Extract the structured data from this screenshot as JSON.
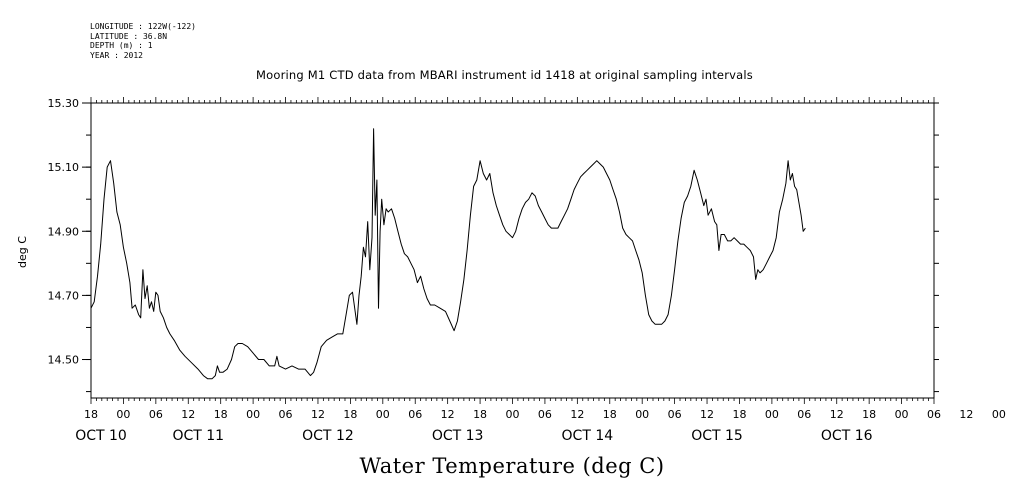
{
  "header": {
    "meta_lines": [
      "LONGITUDE : 122W(-122)",
      "LATITUDE : 36.8N",
      "DEPTH (m) : 1",
      "YEAR : 2012"
    ]
  },
  "chart_data": {
    "type": "line",
    "title": "Mooring M1 CTD data from MBARI instrument id 1418 at original sampling intervals",
    "xlabel": "Water Temperature (deg C)",
    "ylabel": "deg C",
    "ylim": [
      14.38,
      15.3
    ],
    "y_ticks": [
      "14.50",
      "14.70",
      "14.90",
      "15.10",
      "15.30"
    ],
    "x_range_hours": [
      0,
      156
    ],
    "x_start": "2012-10-10T18:00",
    "x_tick_labels": [
      "18",
      "00",
      "06",
      "12",
      "18",
      "00",
      "06",
      "12",
      "18",
      "00",
      "06",
      "12",
      "18",
      "00",
      "06",
      "12",
      "18",
      "00",
      "06",
      "12",
      "18",
      "00",
      "06",
      "12",
      "18",
      "00",
      "06",
      "12",
      "00"
    ],
    "x_day_labels": [
      {
        "label": "OCT 10",
        "hour": 0
      },
      {
        "label": "OCT 11",
        "hour": 18
      },
      {
        "label": "OCT 12",
        "hour": 42
      },
      {
        "label": "OCT 13",
        "hour": 66
      },
      {
        "label": "OCT 14",
        "hour": 90
      },
      {
        "label": "OCT 15",
        "hour": 114
      },
      {
        "label": "OCT 16",
        "hour": 138
      }
    ],
    "series": [
      {
        "color": "#000000",
        "points": [
          [
            0,
            14.66
          ],
          [
            0.6,
            14.68
          ],
          [
            1.2,
            14.76
          ],
          [
            1.8,
            14.86
          ],
          [
            2.4,
            15.0
          ],
          [
            3,
            15.1
          ],
          [
            3.6,
            15.12
          ],
          [
            4.2,
            15.05
          ],
          [
            4.8,
            14.96
          ],
          [
            5.4,
            14.92
          ],
          [
            6,
            14.85
          ],
          [
            6.6,
            14.8
          ],
          [
            7.2,
            14.74
          ],
          [
            7.6,
            14.66
          ],
          [
            8.2,
            14.67
          ],
          [
            8.8,
            14.64
          ],
          [
            9.2,
            14.63
          ],
          [
            9.6,
            14.78
          ],
          [
            10,
            14.69
          ],
          [
            10.4,
            14.73
          ],
          [
            10.8,
            14.66
          ],
          [
            11.2,
            14.68
          ],
          [
            11.6,
            14.65
          ],
          [
            12,
            14.71
          ],
          [
            12.4,
            14.7
          ],
          [
            12.8,
            14.65
          ],
          [
            13.4,
            14.63
          ],
          [
            14,
            14.6
          ],
          [
            14.6,
            14.58
          ],
          [
            15.4,
            14.56
          ],
          [
            16.4,
            14.53
          ],
          [
            17.4,
            14.51
          ],
          [
            18.6,
            14.49
          ],
          [
            19.8,
            14.47
          ],
          [
            20.8,
            14.45
          ],
          [
            21.6,
            14.44
          ],
          [
            22.4,
            14.44
          ],
          [
            23,
            14.45
          ],
          [
            23.4,
            14.48
          ],
          [
            23.8,
            14.46
          ],
          [
            24.4,
            14.46
          ],
          [
            25.2,
            14.47
          ],
          [
            26,
            14.5
          ],
          [
            26.6,
            14.54
          ],
          [
            27.2,
            14.55
          ],
          [
            28,
            14.55
          ],
          [
            29,
            14.54
          ],
          [
            30,
            14.52
          ],
          [
            31,
            14.5
          ],
          [
            32,
            14.5
          ],
          [
            33,
            14.48
          ],
          [
            34,
            14.48
          ],
          [
            34.4,
            14.51
          ],
          [
            34.8,
            14.48
          ],
          [
            36,
            14.47
          ],
          [
            37.2,
            14.48
          ],
          [
            38.4,
            14.47
          ],
          [
            39.6,
            14.47
          ],
          [
            40.6,
            14.45
          ],
          [
            41.2,
            14.46
          ],
          [
            41.8,
            14.49
          ],
          [
            42.6,
            14.54
          ],
          [
            43.6,
            14.56
          ],
          [
            44.6,
            14.57
          ],
          [
            45.6,
            14.58
          ],
          [
            46.6,
            14.58
          ],
          [
            47.2,
            14.64
          ],
          [
            47.8,
            14.7
          ],
          [
            48.4,
            14.71
          ],
          [
            48.8,
            14.66
          ],
          [
            49.2,
            14.61
          ],
          [
            49.6,
            14.7
          ],
          [
            50,
            14.76
          ],
          [
            50.4,
            14.85
          ],
          [
            50.8,
            14.82
          ],
          [
            51.2,
            14.93
          ],
          [
            51.6,
            14.78
          ],
          [
            52,
            14.88
          ],
          [
            52.3,
            15.22
          ],
          [
            52.6,
            14.95
          ],
          [
            52.9,
            15.06
          ],
          [
            53.2,
            14.66
          ],
          [
            53.5,
            14.9
          ],
          [
            53.8,
            15.0
          ],
          [
            54.2,
            14.92
          ],
          [
            54.6,
            14.97
          ],
          [
            55,
            14.96
          ],
          [
            55.6,
            14.97
          ],
          [
            56.2,
            14.94
          ],
          [
            56.8,
            14.9
          ],
          [
            57.4,
            14.86
          ],
          [
            58,
            14.83
          ],
          [
            58.6,
            14.82
          ],
          [
            59.2,
            14.8
          ],
          [
            59.8,
            14.78
          ],
          [
            60.4,
            14.74
          ],
          [
            61,
            14.76
          ],
          [
            61.6,
            14.72
          ],
          [
            62.2,
            14.69
          ],
          [
            62.8,
            14.67
          ],
          [
            63.6,
            14.67
          ],
          [
            64.6,
            14.66
          ],
          [
            65.6,
            14.65
          ],
          [
            66.4,
            14.62
          ],
          [
            67.2,
            14.59
          ],
          [
            67.8,
            14.62
          ],
          [
            68.4,
            14.68
          ],
          [
            69,
            14.75
          ],
          [
            69.6,
            14.84
          ],
          [
            70.2,
            14.95
          ],
          [
            70.8,
            15.04
          ],
          [
            71.4,
            15.06
          ],
          [
            72,
            15.12
          ],
          [
            72.6,
            15.08
          ],
          [
            73.2,
            15.06
          ],
          [
            73.8,
            15.08
          ],
          [
            74.4,
            15.02
          ],
          [
            75,
            14.98
          ],
          [
            75.6,
            14.95
          ],
          [
            76.2,
            14.92
          ],
          [
            76.8,
            14.9
          ],
          [
            77.4,
            14.89
          ],
          [
            78,
            14.88
          ],
          [
            78.6,
            14.9
          ],
          [
            79.2,
            14.94
          ],
          [
            79.8,
            14.97
          ],
          [
            80.4,
            14.99
          ],
          [
            81,
            15.0
          ],
          [
            81.6,
            15.02
          ],
          [
            82.2,
            15.01
          ],
          [
            82.8,
            14.98
          ],
          [
            83.4,
            14.96
          ],
          [
            84,
            14.94
          ],
          [
            84.6,
            14.92
          ],
          [
            85.2,
            14.91
          ],
          [
            85.8,
            14.91
          ],
          [
            86.4,
            14.91
          ],
          [
            87,
            14.93
          ],
          [
            87.6,
            14.95
          ],
          [
            88.2,
            14.97
          ],
          [
            88.8,
            15.0
          ],
          [
            89.4,
            15.03
          ],
          [
            90,
            15.05
          ],
          [
            90.6,
            15.07
          ],
          [
            91.2,
            15.08
          ],
          [
            91.8,
            15.09
          ],
          [
            92.4,
            15.1
          ],
          [
            93,
            15.11
          ],
          [
            93.6,
            15.12
          ],
          [
            94.2,
            15.11
          ],
          [
            94.8,
            15.1
          ],
          [
            95.4,
            15.08
          ],
          [
            96,
            15.06
          ],
          [
            96.6,
            15.03
          ],
          [
            97.2,
            15.0
          ],
          [
            97.8,
            14.96
          ],
          [
            98.4,
            14.91
          ],
          [
            99,
            14.89
          ],
          [
            99.6,
            14.88
          ],
          [
            100.2,
            14.87
          ],
          [
            100.8,
            14.84
          ],
          [
            101.4,
            14.81
          ],
          [
            102,
            14.77
          ],
          [
            102.6,
            14.7
          ],
          [
            103.2,
            14.64
          ],
          [
            103.8,
            14.62
          ],
          [
            104.4,
            14.61
          ],
          [
            105,
            14.61
          ],
          [
            105.6,
            14.61
          ],
          [
            106.2,
            14.62
          ],
          [
            106.8,
            14.64
          ],
          [
            107.4,
            14.7
          ],
          [
            108,
            14.78
          ],
          [
            108.6,
            14.87
          ],
          [
            109.2,
            14.94
          ],
          [
            109.8,
            14.99
          ],
          [
            110.4,
            15.01
          ],
          [
            111,
            15.04
          ],
          [
            111.6,
            15.09
          ],
          [
            112.2,
            15.06
          ],
          [
            112.8,
            15.02
          ],
          [
            113.4,
            14.98
          ],
          [
            113.8,
            15.0
          ],
          [
            114.2,
            14.95
          ],
          [
            114.8,
            14.97
          ],
          [
            115.4,
            14.93
          ],
          [
            115.8,
            14.92
          ],
          [
            116.2,
            14.84
          ],
          [
            116.6,
            14.89
          ],
          [
            117.2,
            14.89
          ],
          [
            117.8,
            14.87
          ],
          [
            118.4,
            14.87
          ],
          [
            119,
            14.88
          ],
          [
            119.6,
            14.87
          ],
          [
            120.2,
            14.86
          ],
          [
            120.8,
            14.86
          ],
          [
            121.4,
            14.85
          ],
          [
            122,
            14.84
          ],
          [
            122.6,
            14.82
          ],
          [
            123,
            14.75
          ],
          [
            123.4,
            14.78
          ],
          [
            123.8,
            14.77
          ],
          [
            124.4,
            14.78
          ],
          [
            125,
            14.8
          ],
          [
            125.6,
            14.82
          ],
          [
            126.2,
            14.84
          ],
          [
            126.8,
            14.88
          ],
          [
            127.4,
            14.96
          ],
          [
            128,
            15.0
          ],
          [
            128.6,
            15.05
          ],
          [
            129,
            15.12
          ],
          [
            129.4,
            15.06
          ],
          [
            129.8,
            15.08
          ],
          [
            130.2,
            15.04
          ],
          [
            130.6,
            15.03
          ],
          [
            131,
            14.99
          ],
          [
            131.4,
            14.95
          ],
          [
            131.8,
            14.9
          ],
          [
            132.2,
            14.91
          ]
        ]
      }
    ]
  }
}
